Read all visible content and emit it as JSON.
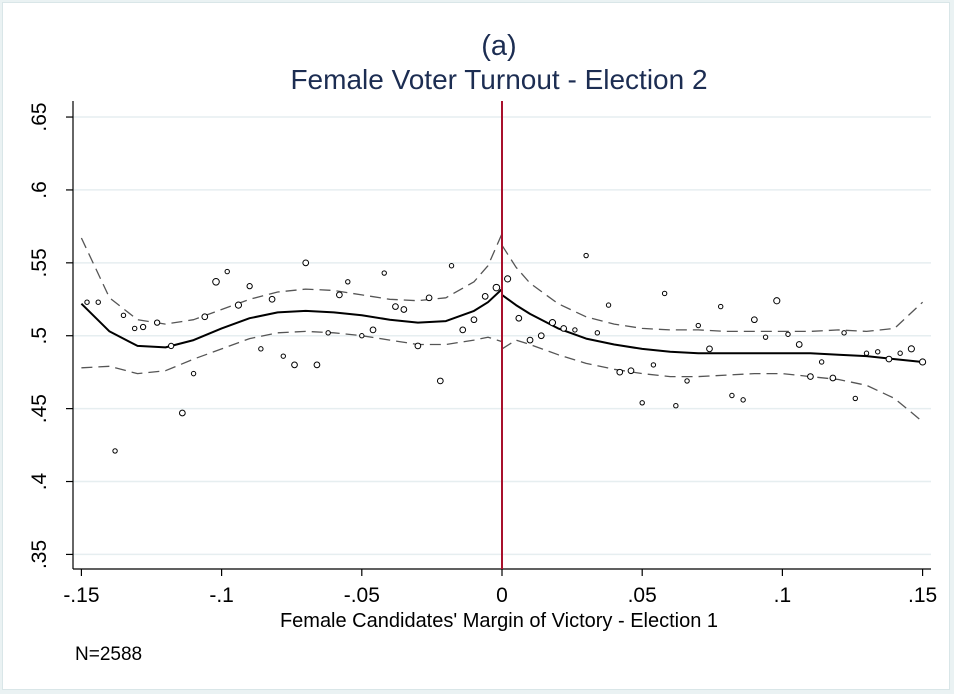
{
  "chart_data": {
    "type": "scatter",
    "title": "(a)",
    "subtitle": "Female Voter Turnout - Election 2",
    "xlabel": "Female Candidates' Margin of Victory - Election 1",
    "ylabel": "",
    "note": "N=2588",
    "xlim": [
      -0.153,
      0.153
    ],
    "ylim": [
      0.34,
      0.661
    ],
    "x_ticks": [
      -0.15,
      -0.1,
      -0.05,
      0,
      0.05,
      0.1,
      0.15
    ],
    "x_tick_labels": [
      "-.15",
      "-.1",
      "-.05",
      "0",
      ".05",
      ".1",
      ".15"
    ],
    "y_ticks": [
      0.35,
      0.4,
      0.45,
      0.5,
      0.55,
      0.6,
      0.65
    ],
    "y_tick_labels": [
      ".35",
      ".4",
      ".45",
      ".5",
      ".55",
      ".6",
      ".65"
    ],
    "grid": true,
    "cutoff": 0,
    "colors": {
      "title": "#1c2d52",
      "cutoff_line": "#a8102c",
      "fit_line": "#000000",
      "ci_line": "#555555",
      "grid": "#e6eef0",
      "background": "#eaf2f3",
      "plot": "#ffffff"
    },
    "series": [
      {
        "kind": "points",
        "points": [
          {
            "x": -0.148,
            "y": 0.523,
            "s": 1.0
          },
          {
            "x": -0.144,
            "y": 0.523,
            "s": 1.0
          },
          {
            "x": -0.138,
            "y": 0.421,
            "s": 1.0
          },
          {
            "x": -0.135,
            "y": 0.514,
            "s": 1.0
          },
          {
            "x": -0.131,
            "y": 0.505,
            "s": 1.0
          },
          {
            "x": -0.128,
            "y": 0.506,
            "s": 1.2
          },
          {
            "x": -0.123,
            "y": 0.509,
            "s": 1.2
          },
          {
            "x": -0.118,
            "y": 0.493,
            "s": 1.2
          },
          {
            "x": -0.114,
            "y": 0.447,
            "s": 1.3
          },
          {
            "x": -0.11,
            "y": 0.474,
            "s": 1.0
          },
          {
            "x": -0.106,
            "y": 0.513,
            "s": 1.3
          },
          {
            "x": -0.102,
            "y": 0.537,
            "s": 1.5
          },
          {
            "x": -0.098,
            "y": 0.544,
            "s": 1.0
          },
          {
            "x": -0.094,
            "y": 0.521,
            "s": 1.4
          },
          {
            "x": -0.09,
            "y": 0.534,
            "s": 1.2
          },
          {
            "x": -0.086,
            "y": 0.491,
            "s": 1.0
          },
          {
            "x": -0.082,
            "y": 0.525,
            "s": 1.3
          },
          {
            "x": -0.078,
            "y": 0.486,
            "s": 1.0
          },
          {
            "x": -0.074,
            "y": 0.48,
            "s": 1.3
          },
          {
            "x": -0.07,
            "y": 0.55,
            "s": 1.3
          },
          {
            "x": -0.066,
            "y": 0.48,
            "s": 1.3
          },
          {
            "x": -0.062,
            "y": 0.502,
            "s": 1.0
          },
          {
            "x": -0.058,
            "y": 0.528,
            "s": 1.3
          },
          {
            "x": -0.055,
            "y": 0.537,
            "s": 1.0
          },
          {
            "x": -0.05,
            "y": 0.5,
            "s": 1.0
          },
          {
            "x": -0.046,
            "y": 0.504,
            "s": 1.3
          },
          {
            "x": -0.042,
            "y": 0.543,
            "s": 1.0
          },
          {
            "x": -0.038,
            "y": 0.52,
            "s": 1.3
          },
          {
            "x": -0.035,
            "y": 0.518,
            "s": 1.3
          },
          {
            "x": -0.03,
            "y": 0.493,
            "s": 1.3
          },
          {
            "x": -0.026,
            "y": 0.526,
            "s": 1.3
          },
          {
            "x": -0.022,
            "y": 0.469,
            "s": 1.3
          },
          {
            "x": -0.018,
            "y": 0.548,
            "s": 1.0
          },
          {
            "x": -0.014,
            "y": 0.504,
            "s": 1.3
          },
          {
            "x": -0.01,
            "y": 0.511,
            "s": 1.3
          },
          {
            "x": -0.006,
            "y": 0.527,
            "s": 1.3
          },
          {
            "x": -0.002,
            "y": 0.533,
            "s": 1.5
          },
          {
            "x": 0.002,
            "y": 0.539,
            "s": 1.4
          },
          {
            "x": 0.006,
            "y": 0.512,
            "s": 1.3
          },
          {
            "x": 0.01,
            "y": 0.497,
            "s": 1.3
          },
          {
            "x": 0.014,
            "y": 0.5,
            "s": 1.3
          },
          {
            "x": 0.018,
            "y": 0.509,
            "s": 1.4
          },
          {
            "x": 0.022,
            "y": 0.505,
            "s": 1.3
          },
          {
            "x": 0.026,
            "y": 0.504,
            "s": 1.0
          },
          {
            "x": 0.03,
            "y": 0.555,
            "s": 1.0
          },
          {
            "x": 0.034,
            "y": 0.502,
            "s": 1.0
          },
          {
            "x": 0.038,
            "y": 0.521,
            "s": 1.0
          },
          {
            "x": 0.042,
            "y": 0.475,
            "s": 1.3
          },
          {
            "x": 0.046,
            "y": 0.476,
            "s": 1.3
          },
          {
            "x": 0.05,
            "y": 0.454,
            "s": 1.0
          },
          {
            "x": 0.054,
            "y": 0.48,
            "s": 1.0
          },
          {
            "x": 0.058,
            "y": 0.529,
            "s": 1.0
          },
          {
            "x": 0.062,
            "y": 0.452,
            "s": 1.0
          },
          {
            "x": 0.066,
            "y": 0.469,
            "s": 1.0
          },
          {
            "x": 0.07,
            "y": 0.507,
            "s": 1.0
          },
          {
            "x": 0.074,
            "y": 0.491,
            "s": 1.3
          },
          {
            "x": 0.078,
            "y": 0.52,
            "s": 1.0
          },
          {
            "x": 0.082,
            "y": 0.459,
            "s": 1.0
          },
          {
            "x": 0.086,
            "y": 0.456,
            "s": 1.0
          },
          {
            "x": 0.09,
            "y": 0.511,
            "s": 1.3
          },
          {
            "x": 0.094,
            "y": 0.499,
            "s": 1.0
          },
          {
            "x": 0.098,
            "y": 0.524,
            "s": 1.4
          },
          {
            "x": 0.102,
            "y": 0.501,
            "s": 1.0
          },
          {
            "x": 0.106,
            "y": 0.494,
            "s": 1.3
          },
          {
            "x": 0.11,
            "y": 0.472,
            "s": 1.3
          },
          {
            "x": 0.114,
            "y": 0.482,
            "s": 1.0
          },
          {
            "x": 0.118,
            "y": 0.471,
            "s": 1.3
          },
          {
            "x": 0.122,
            "y": 0.502,
            "s": 1.0
          },
          {
            "x": 0.126,
            "y": 0.457,
            "s": 1.0
          },
          {
            "x": 0.13,
            "y": 0.488,
            "s": 1.0
          },
          {
            "x": 0.134,
            "y": 0.489,
            "s": 1.0
          },
          {
            "x": 0.138,
            "y": 0.484,
            "s": 1.3
          },
          {
            "x": 0.142,
            "y": 0.488,
            "s": 1.0
          },
          {
            "x": 0.146,
            "y": 0.491,
            "s": 1.4
          },
          {
            "x": 0.15,
            "y": 0.482,
            "s": 1.4
          }
        ]
      },
      {
        "kind": "fit-left",
        "x": [
          -0.15,
          -0.14,
          -0.13,
          -0.12,
          -0.11,
          -0.1,
          -0.09,
          -0.08,
          -0.07,
          -0.06,
          -0.05,
          -0.04,
          -0.03,
          -0.02,
          -0.01,
          -0.005,
          0
        ],
        "y": [
          0.522,
          0.503,
          0.493,
          0.492,
          0.497,
          0.505,
          0.512,
          0.516,
          0.517,
          0.516,
          0.514,
          0.511,
          0.509,
          0.51,
          0.517,
          0.523,
          0.532
        ]
      },
      {
        "kind": "ci-upper-left",
        "x": [
          -0.15,
          -0.14,
          -0.13,
          -0.12,
          -0.11,
          -0.1,
          -0.09,
          -0.08,
          -0.07,
          -0.06,
          -0.05,
          -0.04,
          -0.03,
          -0.02,
          -0.01,
          -0.005,
          0
        ],
        "y": [
          0.567,
          0.526,
          0.511,
          0.508,
          0.511,
          0.518,
          0.525,
          0.53,
          0.532,
          0.531,
          0.528,
          0.525,
          0.524,
          0.526,
          0.537,
          0.548,
          0.57
        ]
      },
      {
        "kind": "ci-lower-left",
        "x": [
          -0.15,
          -0.14,
          -0.13,
          -0.12,
          -0.11,
          -0.1,
          -0.09,
          -0.08,
          -0.07,
          -0.06,
          -0.05,
          -0.04,
          -0.03,
          -0.02,
          -0.01,
          -0.005,
          0
        ],
        "y": [
          0.478,
          0.479,
          0.474,
          0.476,
          0.484,
          0.491,
          0.498,
          0.502,
          0.503,
          0.502,
          0.5,
          0.497,
          0.494,
          0.494,
          0.497,
          0.499,
          0.496
        ]
      },
      {
        "kind": "fit-right",
        "x": [
          0,
          0.005,
          0.01,
          0.02,
          0.03,
          0.04,
          0.05,
          0.06,
          0.07,
          0.08,
          0.09,
          0.1,
          0.11,
          0.12,
          0.13,
          0.14,
          0.15
        ],
        "y": [
          0.528,
          0.521,
          0.515,
          0.505,
          0.498,
          0.494,
          0.491,
          0.489,
          0.488,
          0.488,
          0.488,
          0.488,
          0.488,
          0.487,
          0.486,
          0.484,
          0.482
        ]
      },
      {
        "kind": "ci-upper-right",
        "x": [
          0,
          0.005,
          0.01,
          0.02,
          0.03,
          0.04,
          0.05,
          0.06,
          0.07,
          0.08,
          0.09,
          0.1,
          0.11,
          0.12,
          0.13,
          0.14,
          0.15
        ],
        "y": [
          0.562,
          0.547,
          0.536,
          0.522,
          0.513,
          0.508,
          0.505,
          0.504,
          0.504,
          0.503,
          0.503,
          0.503,
          0.503,
          0.504,
          0.503,
          0.505,
          0.523
        ]
      },
      {
        "kind": "ci-lower-right",
        "x": [
          0,
          0.005,
          0.01,
          0.02,
          0.03,
          0.04,
          0.05,
          0.06,
          0.07,
          0.08,
          0.09,
          0.1,
          0.11,
          0.12,
          0.13,
          0.14,
          0.15
        ],
        "y": [
          0.491,
          0.497,
          0.494,
          0.487,
          0.481,
          0.477,
          0.474,
          0.472,
          0.472,
          0.473,
          0.474,
          0.474,
          0.472,
          0.47,
          0.466,
          0.457,
          0.441
        ]
      }
    ]
  }
}
